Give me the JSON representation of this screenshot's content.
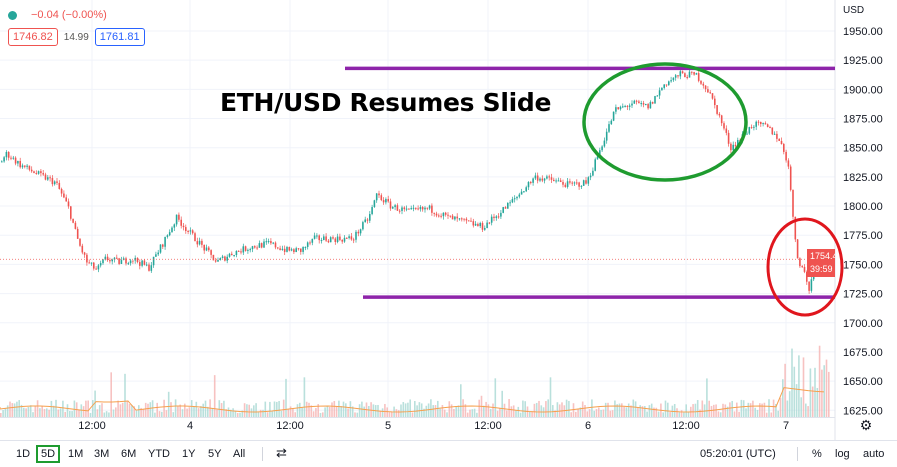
{
  "legend": {
    "change": "−0.04 (−0.00%)",
    "sell": "1746.82",
    "spread": "14.99",
    "buy": "1761.81"
  },
  "chart_title": "ETH/USD Resumes Slide",
  "currency": "USD",
  "current_price": "1754.40",
  "countdown": "39:59",
  "colors": {
    "up": "#26a69a",
    "down": "#ef5350",
    "resistance": "#8e24aa",
    "green_circle": "#1e9b2f",
    "red_circle": "#e0161d"
  },
  "chart_data": {
    "type": "candlestick",
    "title": "ETH/USD Resumes Slide",
    "ylabel": "USD",
    "ylim": [
      1620,
      1962
    ],
    "y_ticks": [
      "1950.00",
      "1925.00",
      "1900.00",
      "1875.00",
      "1850.00",
      "1825.00",
      "1800.00",
      "1775.00",
      "1750.00",
      "1725.00",
      "1700.00",
      "1675.00",
      "1650.00",
      "1625.00"
    ],
    "x_ticks": [
      "12:00",
      "4",
      "12:00",
      "5",
      "12:00",
      "6",
      "12:00",
      "7"
    ],
    "price_path": [
      [
        0,
        1838
      ],
      [
        6,
        1845
      ],
      [
        20,
        1835
      ],
      [
        40,
        1826
      ],
      [
        55,
        1820
      ],
      [
        68,
        1798
      ],
      [
        78,
        1768
      ],
      [
        86,
        1752
      ],
      [
        96,
        1745
      ],
      [
        105,
        1755
      ],
      [
        118,
        1752
      ],
      [
        132,
        1755
      ],
      [
        148,
        1747
      ],
      [
        162,
        1768
      ],
      [
        176,
        1790
      ],
      [
        188,
        1778
      ],
      [
        202,
        1765
      ],
      [
        216,
        1752
      ],
      [
        232,
        1760
      ],
      [
        250,
        1765
      ],
      [
        268,
        1768
      ],
      [
        286,
        1762
      ],
      [
        300,
        1762
      ],
      [
        314,
        1772
      ],
      [
        332,
        1772
      ],
      [
        352,
        1772
      ],
      [
        368,
        1790
      ],
      [
        376,
        1810
      ],
      [
        390,
        1800
      ],
      [
        408,
        1795
      ],
      [
        428,
        1798
      ],
      [
        448,
        1790
      ],
      [
        466,
        1786
      ],
      [
        482,
        1782
      ],
      [
        500,
        1795
      ],
      [
        516,
        1808
      ],
      [
        534,
        1825
      ],
      [
        552,
        1822
      ],
      [
        568,
        1818
      ],
      [
        586,
        1820
      ],
      [
        600,
        1850
      ],
      [
        614,
        1882
      ],
      [
        632,
        1888
      ],
      [
        648,
        1885
      ],
      [
        664,
        1905
      ],
      [
        680,
        1913
      ],
      [
        696,
        1912
      ],
      [
        708,
        1898
      ],
      [
        718,
        1878
      ],
      [
        730,
        1850
      ],
      [
        742,
        1860
      ],
      [
        752,
        1870
      ],
      [
        766,
        1868
      ],
      [
        778,
        1858
      ],
      [
        788,
        1835
      ],
      [
        792,
        1790
      ],
      [
        797,
        1755
      ],
      [
        803,
        1745
      ],
      [
        808,
        1728
      ],
      [
        814,
        1748
      ],
      [
        820,
        1755
      ],
      [
        830,
        1755
      ]
    ],
    "horizontal_lines": [
      1918,
      1722
    ],
    "annotations": [
      "green ellipse around peak near 1900",
      "red ellipse around recent low near 1745"
    ],
    "volume_bars": true
  },
  "toolbar": {
    "timeframes": [
      "1D",
      "5D",
      "1M",
      "3M",
      "6M",
      "YTD",
      "1Y",
      "5Y",
      "All"
    ],
    "active_timeframe": "5D",
    "time": "05:20:01 (UTC)",
    "options": [
      "%",
      "log",
      "auto"
    ]
  }
}
